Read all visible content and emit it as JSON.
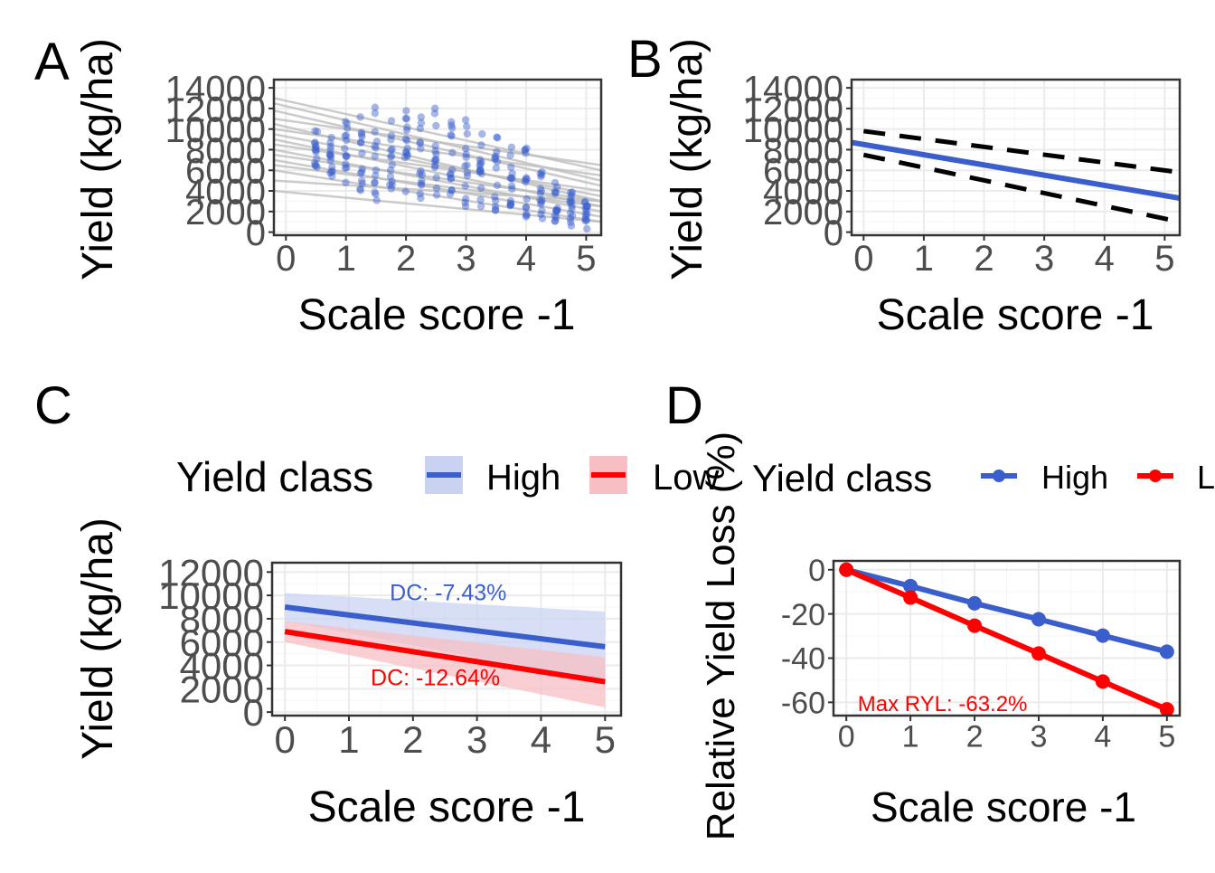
{
  "colors": {
    "high": "#3A5FCD",
    "low": "#FF0000",
    "fit_lines": "#BEBEBE",
    "ci_high": "#C9D3F1",
    "ci_low": "#F7BFC4",
    "grid": "#EBEBEB",
    "tick_text": "#4D4D4D"
  },
  "chart_data": [
    {
      "panel": "A",
      "type": "scatter",
      "xlabel": "Scale score -1",
      "ylabel": "Yield (kg/ha)",
      "xlim": [
        -0.2,
        5.25
      ],
      "ylim": [
        -300,
        14800
      ],
      "x_ticks": [
        "0",
        "1",
        "2",
        "3",
        "4",
        "5"
      ],
      "y_ticks": [
        "0",
        "2000",
        "4000",
        "6000",
        "8000",
        "10000",
        "12000",
        "14000"
      ],
      "x_tick_values": [
        0,
        1,
        2,
        3,
        4,
        5
      ],
      "y_tick_values": [
        0,
        2000,
        4000,
        6000,
        8000,
        10000,
        12000,
        14000
      ],
      "grid": true,
      "point_columns": [
        {
          "x": 0.5,
          "ymin": 6000,
          "ymax": 10000
        },
        {
          "x": 0.75,
          "ymin": 5000,
          "ymax": 10500
        },
        {
          "x": 1.0,
          "ymin": 4500,
          "ymax": 11000
        },
        {
          "x": 1.25,
          "ymin": 4000,
          "ymax": 12000
        },
        {
          "x": 1.5,
          "ymin": 3000,
          "ymax": 13800
        },
        {
          "x": 1.75,
          "ymin": 4000,
          "ymax": 11500
        },
        {
          "x": 2.0,
          "ymin": 3500,
          "ymax": 12000
        },
        {
          "x": 2.25,
          "ymin": 3000,
          "ymax": 11500
        },
        {
          "x": 2.5,
          "ymin": 3000,
          "ymax": 13000
        },
        {
          "x": 2.75,
          "ymin": 3000,
          "ymax": 11000
        },
        {
          "x": 3.0,
          "ymin": 2000,
          "ymax": 12000
        },
        {
          "x": 3.25,
          "ymin": 2500,
          "ymax": 9800
        },
        {
          "x": 3.5,
          "ymin": 2000,
          "ymax": 10500
        },
        {
          "x": 3.75,
          "ymin": 2000,
          "ymax": 9000
        },
        {
          "x": 4.0,
          "ymin": 1500,
          "ymax": 10000
        },
        {
          "x": 4.25,
          "ymin": 1300,
          "ymax": 6000
        },
        {
          "x": 4.5,
          "ymin": 1000,
          "ymax": 5500
        },
        {
          "x": 4.75,
          "ymin": 500,
          "ymax": 4000
        },
        {
          "x": 5.0,
          "ymin": 200,
          "ymax": 3000
        }
      ],
      "group_fit_lines": [
        {
          "y0": 13000,
          "y1": 6000
        },
        {
          "y0": 12500,
          "y1": 5000
        },
        {
          "y0": 11800,
          "y1": 4500
        },
        {
          "y0": 11000,
          "y1": 6500
        },
        {
          "y0": 10500,
          "y1": 3000
        },
        {
          "y0": 10000,
          "y1": 5500
        },
        {
          "y0": 9500,
          "y1": 3500
        },
        {
          "y0": 9000,
          "y1": 2500
        },
        {
          "y0": 8500,
          "y1": 4000
        },
        {
          "y0": 8000,
          "y1": 2000
        },
        {
          "y0": 7500,
          "y1": 3000
        },
        {
          "y0": 7000,
          "y1": 1500
        },
        {
          "y0": 6500,
          "y1": 2500
        },
        {
          "y0": 6000,
          "y1": 1000
        },
        {
          "y0": 5000,
          "y1": 3000
        },
        {
          "y0": 4000,
          "y1": 1000
        }
      ]
    },
    {
      "panel": "B",
      "type": "line",
      "xlabel": "Scale score -1",
      "ylabel": "Yield (kg/ha)",
      "xlim": [
        -0.2,
        5.25
      ],
      "ylim": [
        -300,
        14800
      ],
      "x_ticks": [
        "0",
        "1",
        "2",
        "3",
        "4",
        "5"
      ],
      "y_ticks": [
        "0",
        "2000",
        "4000",
        "6000",
        "8000",
        "10000",
        "12000",
        "14000"
      ],
      "x_tick_values": [
        0,
        1,
        2,
        3,
        4,
        5
      ],
      "y_tick_values": [
        0,
        2000,
        4000,
        6000,
        8000,
        10000,
        12000,
        14000
      ],
      "grid": true,
      "fit": {
        "x": [
          -0.2,
          5.25
        ],
        "y": [
          8700,
          3300
        ]
      },
      "upper_ci": {
        "x": [
          0,
          5.25
        ],
        "y": [
          9800,
          5800
        ]
      },
      "lower_ci": {
        "x": [
          0,
          5.25
        ],
        "y": [
          7500,
          1000
        ]
      }
    },
    {
      "panel": "C",
      "type": "line",
      "xlabel": "Scale score -1",
      "ylabel": "Yield (kg/ha)",
      "xlim": [
        -0.2,
        5.25
      ],
      "ylim": [
        -300,
        12800
      ],
      "x_ticks": [
        "0",
        "1",
        "2",
        "3",
        "4",
        "5"
      ],
      "y_ticks": [
        "0",
        "2000",
        "4000",
        "6000",
        "8000",
        "10000",
        "12000"
      ],
      "x_tick_values": [
        0,
        1,
        2,
        3,
        4,
        5
      ],
      "y_tick_values": [
        0,
        2000,
        4000,
        6000,
        8000,
        10000,
        12000
      ],
      "grid": true,
      "legend": {
        "title": "Yield class",
        "position": "top"
      },
      "series": [
        {
          "name": "High",
          "x": [
            0,
            5
          ],
          "y": [
            9000,
            5600
          ],
          "ci_upper": [
            10200,
            8600
          ],
          "ci_lower": [
            7800,
            2600
          ]
        },
        {
          "name": "Low",
          "x": [
            0,
            5
          ],
          "y": [
            6900,
            2600
          ],
          "ci_upper": [
            7800,
            4700
          ],
          "ci_lower": [
            6000,
            400
          ]
        }
      ],
      "annotations": [
        {
          "text": "DC: -7.43%",
          "series": "High",
          "x": 2.55,
          "y": 10200
        },
        {
          "text": "DC: -12.64%",
          "series": "Low",
          "x": 2.35,
          "y": 2900
        }
      ]
    },
    {
      "panel": "D",
      "type": "line",
      "xlabel": "Scale score -1",
      "ylabel": "Relative Yield Loss (%)",
      "xlim": [
        -0.2,
        5.2
      ],
      "ylim": [
        -66,
        4
      ],
      "x_ticks": [
        "0",
        "1",
        "2",
        "3",
        "4",
        "5"
      ],
      "y_ticks": [
        "0",
        "-20",
        "-40",
        "-60"
      ],
      "x_tick_values": [
        0,
        1,
        2,
        3,
        4,
        5
      ],
      "y_tick_values": [
        0,
        -20,
        -40,
        -60
      ],
      "grid": true,
      "legend": {
        "title": "Yield class",
        "position": "top"
      },
      "series": [
        {
          "name": "High",
          "x": [
            0,
            1,
            2,
            3,
            4,
            5
          ],
          "y": [
            0,
            -7.4,
            -15.2,
            -22.4,
            -29.8,
            -37.1
          ]
        },
        {
          "name": "Low",
          "x": [
            0,
            1,
            2,
            3,
            4,
            5
          ],
          "y": [
            0,
            -12.6,
            -25.3,
            -37.9,
            -50.6,
            -63.2
          ]
        }
      ],
      "annotations": [
        {
          "text": "Max RYL: -63.2%",
          "series": "Low",
          "x": 1.5,
          "y": -61
        }
      ]
    }
  ],
  "panel_labels": [
    "A",
    "B",
    "C",
    "D"
  ],
  "legend_c": {
    "title": "Yield class",
    "items": [
      "High",
      "Low"
    ]
  },
  "legend_d": {
    "title": "Yield class",
    "items": [
      "High",
      "Low"
    ]
  }
}
